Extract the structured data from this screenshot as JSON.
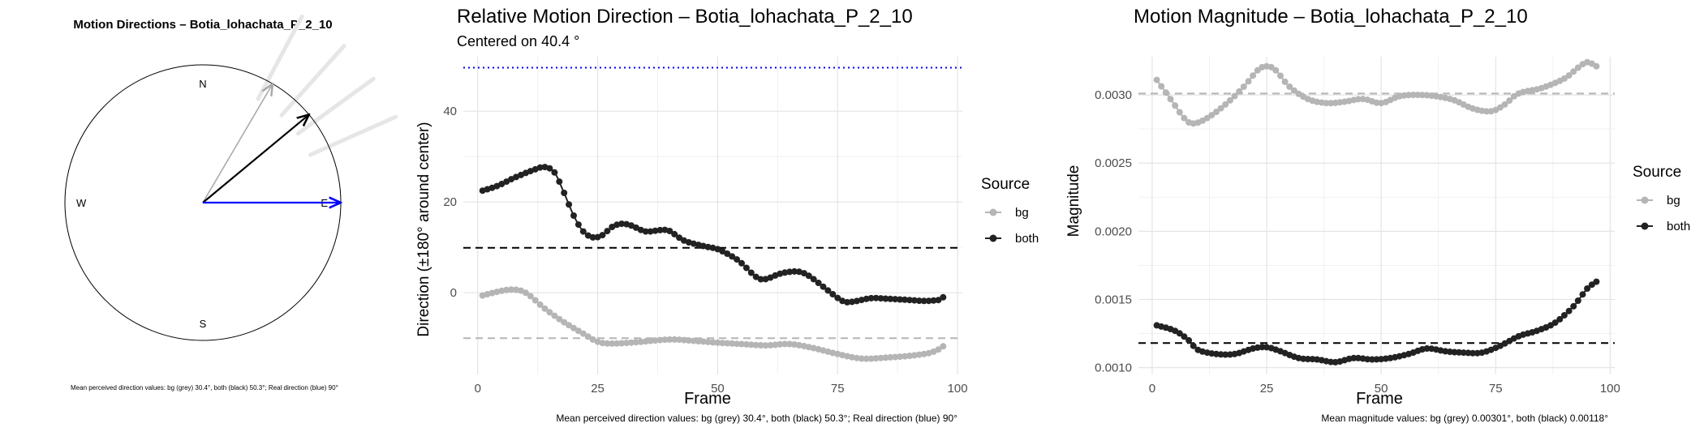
{
  "compass": {
    "title": "Motion Directions – Botia_lohachata_P_2_10",
    "labels": {
      "n": "N",
      "s": "S",
      "e": "E",
      "w": "W"
    },
    "arrows": [
      {
        "name": "bg",
        "angle_deg": 30.4,
        "color": "#aaaaaa"
      },
      {
        "name": "both",
        "angle_deg": 50.3,
        "color": "#000000"
      },
      {
        "name": "real",
        "angle_deg": 90,
        "color": "#0000ff"
      }
    ],
    "faint_rays_deg": [
      24,
      36,
      48,
      62
    ],
    "caption": "Mean perceived direction values: bg (grey) 30.4°, both (black) 50.3°; Real direction (blue) 90°"
  },
  "chart_data": [
    {
      "type": "line",
      "title": "Relative Motion Direction – Botia_lohachata_P_2_10",
      "subtitle": "Centered on  40.4 °",
      "xlabel": "Frame",
      "ylabel": "Direction (±180° around center)",
      "xlim": [
        -3,
        101
      ],
      "ylim": [
        -18,
        52
      ],
      "xticks": [
        0,
        25,
        50,
        75,
        100
      ],
      "yticks": [
        0,
        20,
        40
      ],
      "grid": true,
      "legend": {
        "title": "Source",
        "placement": "right",
        "entries": [
          {
            "label": "bg",
            "color": "#b5b5b5"
          },
          {
            "label": "both",
            "color": "#222222"
          }
        ]
      },
      "reference_lines": [
        {
          "y": 49.6,
          "color": "#0000ff",
          "style": "dotted"
        },
        {
          "y": 9.9,
          "color": "#000000",
          "style": "dashed"
        },
        {
          "y": -10.0,
          "color": "#b5b5b5",
          "style": "dashed"
        }
      ],
      "series": [
        {
          "name": "bg",
          "color": "#b5b5b5",
          "knots": [
            [
              1,
              -0.6
            ],
            [
              4,
              0.2
            ],
            [
              7,
              0.7
            ],
            [
              10,
              0
            ],
            [
              14,
              -3.5
            ],
            [
              18,
              -6.5
            ],
            [
              22,
              -9
            ],
            [
              25,
              -10.8
            ],
            [
              28,
              -11.2
            ],
            [
              33,
              -10.9
            ],
            [
              40,
              -10.3
            ],
            [
              45,
              -10.6
            ],
            [
              50,
              -11
            ],
            [
              55,
              -11.3
            ],
            [
              60,
              -11.6
            ],
            [
              65,
              -11.3
            ],
            [
              70,
              -12.2
            ],
            [
              75,
              -13.5
            ],
            [
              80,
              -14.5
            ],
            [
              85,
              -14.3
            ],
            [
              90,
              -13.9
            ],
            [
              94,
              -13.3
            ],
            [
              96,
              -12.5
            ],
            [
              97,
              -11.8
            ]
          ]
        },
        {
          "name": "both",
          "color": "#222222",
          "knots": [
            [
              1,
              22.5
            ],
            [
              4,
              23.5
            ],
            [
              8,
              25.5
            ],
            [
              12,
              27.2
            ],
            [
              14,
              27.7
            ],
            [
              16,
              26.5
            ],
            [
              18,
              22
            ],
            [
              20,
              17
            ],
            [
              22,
              13.5
            ],
            [
              24,
              12.2
            ],
            [
              26,
              12.7
            ],
            [
              28,
              14.5
            ],
            [
              30,
              15.2
            ],
            [
              32,
              14.8
            ],
            [
              35,
              13.5
            ],
            [
              38,
              13.8
            ],
            [
              40,
              13.6
            ],
            [
              43,
              11.5
            ],
            [
              47,
              10.3
            ],
            [
              50,
              9.6
            ],
            [
              53,
              8
            ],
            [
              55,
              6.5
            ],
            [
              58,
              3.5
            ],
            [
              60,
              3
            ],
            [
              63,
              4.2
            ],
            [
              66,
              4.7
            ],
            [
              68,
              4.3
            ],
            [
              70,
              3
            ],
            [
              73,
              0.5
            ],
            [
              76,
              -1.8
            ],
            [
              78,
              -2
            ],
            [
              82,
              -1.2
            ],
            [
              85,
              -1.3
            ],
            [
              90,
              -1.6
            ],
            [
              93,
              -1.8
            ],
            [
              96,
              -1.6
            ],
            [
              97,
              -1
            ]
          ]
        }
      ],
      "caption": "Mean perceived direction values: bg (grey) 30.4°, both (black) 50.3°; Real direction (blue) 90°"
    },
    {
      "type": "line",
      "title": "Motion Magnitude – Botia_lohachata_P_2_10",
      "xlabel": "Frame",
      "ylabel": "Magnitude",
      "xlim": [
        -3,
        101
      ],
      "ylim": [
        0.00095,
        0.00328
      ],
      "xticks": [
        0,
        25,
        50,
        75,
        100
      ],
      "yticks": [
        0.001,
        0.0015,
        0.002,
        0.0025,
        0.003
      ],
      "ytick_labels": [
        "0.0010",
        "0.0015",
        "0.0020",
        "0.0025",
        "0.0030"
      ],
      "grid": true,
      "legend": {
        "title": "Source",
        "placement": "right",
        "entries": [
          {
            "label": "bg",
            "color": "#b5b5b5"
          },
          {
            "label": "both",
            "color": "#222222"
          }
        ]
      },
      "reference_lines": [
        {
          "y": 0.00301,
          "color": "#b5b5b5",
          "style": "dashed"
        },
        {
          "y": 0.00118,
          "color": "#000000",
          "style": "dashed"
        }
      ],
      "series": [
        {
          "name": "bg",
          "color": "#b5b5b5",
          "knots": [
            [
              1,
              0.00311
            ],
            [
              4,
              0.00297
            ],
            [
              7,
              0.00283
            ],
            [
              9,
              0.00279
            ],
            [
              12,
              0.00283
            ],
            [
              16,
              0.00293
            ],
            [
              20,
              0.00306
            ],
            [
              23,
              0.00318
            ],
            [
              25,
              0.00321
            ],
            [
              27,
              0.00318
            ],
            [
              30,
              0.00306
            ],
            [
              34,
              0.00297
            ],
            [
              38,
              0.00294
            ],
            [
              42,
              0.00295
            ],
            [
              46,
              0.00297
            ],
            [
              50,
              0.00294
            ],
            [
              54,
              0.00299
            ],
            [
              58,
              0.003
            ],
            [
              62,
              0.00299
            ],
            [
              66,
              0.00296
            ],
            [
              70,
              0.0029
            ],
            [
              74,
              0.00288
            ],
            [
              77,
              0.00293
            ],
            [
              80,
              0.00301
            ],
            [
              85,
              0.00305
            ],
            [
              90,
              0.00312
            ],
            [
              93,
              0.0032
            ],
            [
              95,
              0.00324
            ],
            [
              97,
              0.00321
            ]
          ]
        },
        {
          "name": "both",
          "color": "#222222",
          "knots": [
            [
              1,
              0.00131
            ],
            [
              5,
              0.00127
            ],
            [
              8,
              0.0012
            ],
            [
              10,
              0.00113
            ],
            [
              14,
              0.0011
            ],
            [
              18,
              0.0011
            ],
            [
              22,
              0.00114
            ],
            [
              25,
              0.00115
            ],
            [
              28,
              0.00112
            ],
            [
              32,
              0.00107
            ],
            [
              36,
              0.00106
            ],
            [
              40,
              0.00104
            ],
            [
              44,
              0.00107
            ],
            [
              48,
              0.00106
            ],
            [
              52,
              0.00107
            ],
            [
              56,
              0.0011
            ],
            [
              60,
              0.00114
            ],
            [
              64,
              0.00112
            ],
            [
              68,
              0.00111
            ],
            [
              72,
              0.00111
            ],
            [
              76,
              0.00116
            ],
            [
              80,
              0.00123
            ],
            [
              84,
              0.00127
            ],
            [
              88,
              0.00133
            ],
            [
              92,
              0.00145
            ],
            [
              95,
              0.00158
            ],
            [
              97,
              0.00163
            ]
          ]
        }
      ],
      "caption": "Mean magnitude values: bg (grey) 0.00301°, both (black) 0.00118°"
    }
  ]
}
